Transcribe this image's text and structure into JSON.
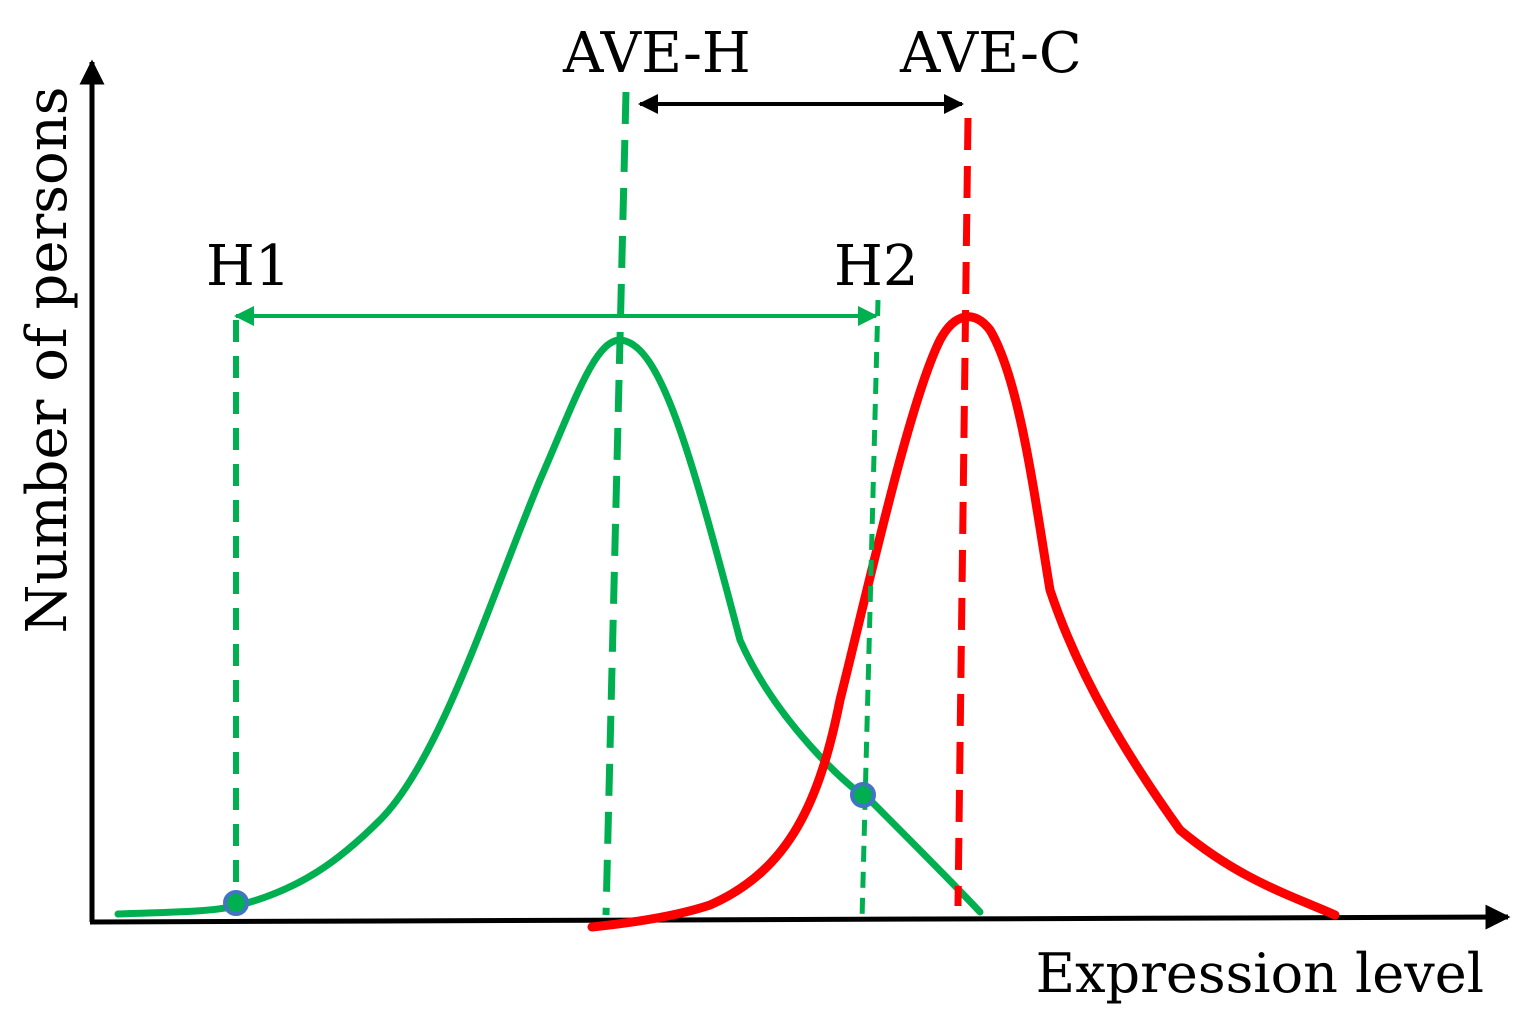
{
  "labels": {
    "y_axis": "Number of persons",
    "x_axis": "Expression level",
    "ave_h": "AVE-H",
    "ave_c": "AVE-C",
    "h1": "H1",
    "h2": "H2"
  },
  "colors": {
    "healthy": "#00b050",
    "cancer": "#ff0000",
    "axis": "#000000",
    "marker_fill": "#00b050",
    "marker_stroke": "#4472c4"
  }
}
